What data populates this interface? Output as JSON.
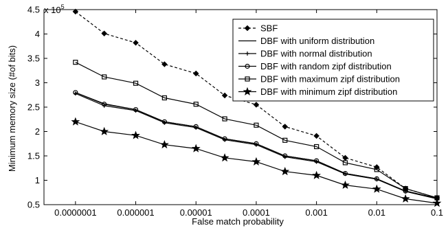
{
  "chart_data": {
    "type": "line",
    "title": "",
    "xlabel": "False match probability",
    "ylabel": "Minimum memory size (#of bits)",
    "y_multiplier_label": "x 10",
    "y_multiplier_exponent": "5",
    "x_scale": "log",
    "y_scale": "linear",
    "grid": false,
    "legend_position": "top-right",
    "xlim": [
      3e-08,
      0.1
    ],
    "ylim": [
      0.5,
      4.5
    ],
    "x_ticks": [
      1e-07,
      1e-06,
      1e-05,
      0.0001,
      0.001,
      0.01,
      0.1
    ],
    "x_tick_labels": [
      "0.0000001",
      "0.000001",
      "0.00001",
      "0.0001",
      "0.001",
      "0.01",
      "0.1"
    ],
    "y_ticks": [
      0.5,
      1,
      1.5,
      2,
      2.5,
      3,
      3.5,
      4,
      4.5
    ],
    "y_tick_labels": [
      "0.5",
      "1",
      "1.5",
      "2",
      "2.5",
      "3",
      "3.5",
      "4",
      "4.5"
    ],
    "x": [
      1e-07,
      3e-07,
      1e-06,
      3e-06,
      1e-05,
      3e-05,
      0.0001,
      0.0003,
      0.001,
      0.003,
      0.01,
      0.03,
      0.1
    ],
    "series": [
      {
        "name": "SBF",
        "line_style": "dashed",
        "marker": "diamond",
        "values": [
          4.46,
          4.01,
          3.82,
          3.38,
          3.19,
          2.74,
          2.55,
          2.1,
          1.91,
          1.46,
          1.27,
          0.83,
          0.64
        ]
      },
      {
        "name": "DBF with uniform distribution",
        "line_style": "solid",
        "marker": "none",
        "values": [
          2.8,
          2.57,
          2.45,
          2.2,
          2.1,
          1.85,
          1.75,
          1.5,
          1.4,
          1.14,
          1.03,
          0.78,
          0.63
        ]
      },
      {
        "name": "DBF with normal distribution",
        "line_style": "solid",
        "marker": "plus",
        "values": [
          2.78,
          2.53,
          2.43,
          2.18,
          2.08,
          1.83,
          1.73,
          1.48,
          1.38,
          1.13,
          1.02,
          0.77,
          0.62
        ]
      },
      {
        "name": "DBF with random zipf distribution",
        "line_style": "solid",
        "marker": "circle",
        "values": [
          2.8,
          2.56,
          2.45,
          2.2,
          2.1,
          1.85,
          1.75,
          1.5,
          1.4,
          1.14,
          1.03,
          0.78,
          0.63
        ]
      },
      {
        "name": "DBF with maximum zipf distribution",
        "line_style": "solid",
        "marker": "square",
        "values": [
          3.42,
          3.12,
          2.99,
          2.69,
          2.56,
          2.26,
          2.13,
          1.82,
          1.69,
          1.36,
          1.22,
          0.83,
          0.64
        ]
      },
      {
        "name": "DBF with minimum zipf distribution",
        "line_style": "solid",
        "marker": "star",
        "values": [
          2.2,
          2.0,
          1.92,
          1.73,
          1.65,
          1.46,
          1.38,
          1.18,
          1.1,
          0.9,
          0.82,
          0.62,
          0.53
        ]
      }
    ]
  }
}
